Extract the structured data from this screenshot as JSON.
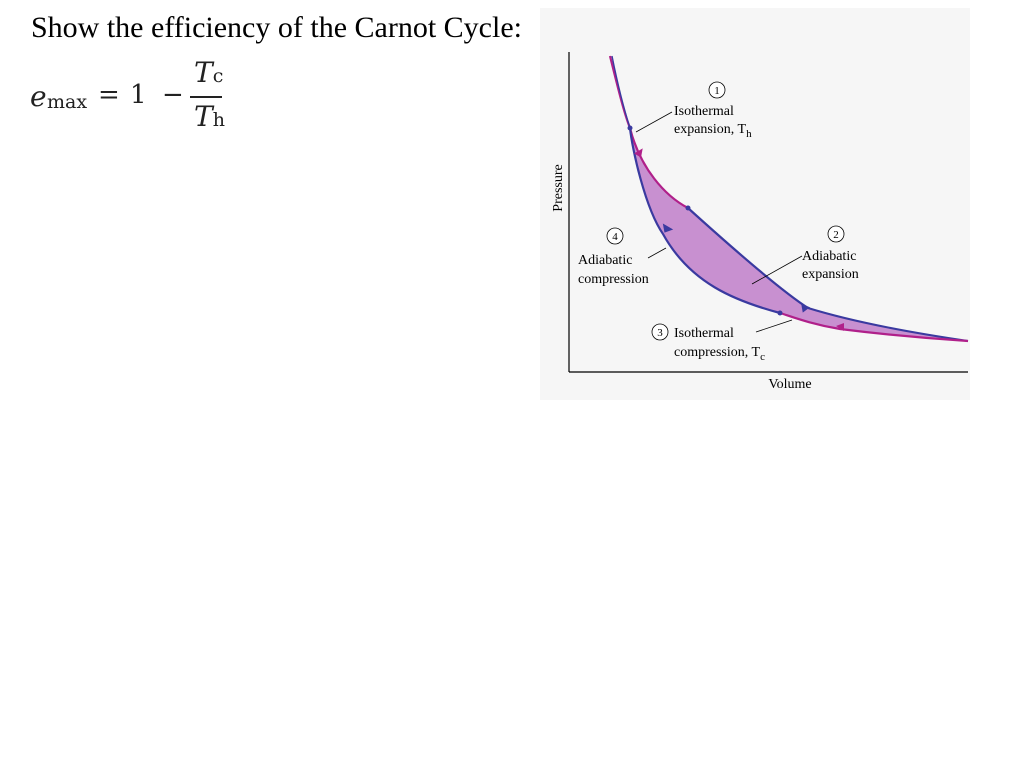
{
  "slide": {
    "heading": "Show the efficiency of the Carnot Cycle:",
    "formula": {
      "lhs_symbol": "e",
      "lhs_subscript": "max",
      "equals": "=",
      "one": "1",
      "minus": "−",
      "numerator_symbol": "T",
      "numerator_subscript": "c",
      "denominator_symbol": "T",
      "denominator_subscript": "h"
    }
  },
  "diagram": {
    "y_axis_label": "Pressure",
    "x_axis_label": "Volume",
    "stages": [
      {
        "number": "1",
        "line1": "Isothermal",
        "line2": "expansion, T",
        "line2_subscript": "h"
      },
      {
        "number": "2",
        "line1": "Adiabatic",
        "line2": "expansion"
      },
      {
        "number": "3",
        "line1": "Isothermal",
        "line2": "compression, T",
        "line2_subscript": "c"
      },
      {
        "number": "4",
        "line1": "Adiabatic",
        "line2": "compression"
      }
    ],
    "colors": {
      "fill": "#c890d0",
      "isotherm": "#b0208a",
      "adiabat": "#3a3aa0",
      "axis": "#000000"
    }
  }
}
